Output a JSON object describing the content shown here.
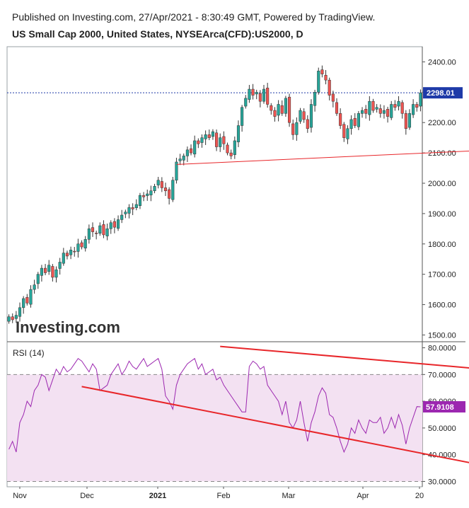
{
  "header": {
    "published": "Published on Investing.com, 27/Apr/2021 - 8:30:49 GMT, Powered by TradingView.",
    "instrument": "US Small Cap 2000, United States, NYSEArca(CFD):US2000, D"
  },
  "watermark": "Investing.com",
  "colors": {
    "up": "#26a69a",
    "down": "#ef5350",
    "rsi_line": "#9c27b0",
    "rsi_band": "#f3e1f2",
    "annotation": "#e8262a",
    "price_line": "#1e3aa8"
  },
  "chart_data": [
    {
      "type": "candlestick",
      "title": "US Small Cap 2000, United States, NYSEArca(CFD):US2000, D",
      "ylim": [
        1480,
        2450
      ],
      "y_ticks": [
        1500,
        1600,
        1700,
        1800,
        1900,
        2000,
        2100,
        2200,
        2300,
        2400
      ],
      "y_tick_labels": [
        "1500.00",
        "1600.00",
        "1700.00",
        "1800.00",
        "1900.00",
        "2000.00",
        "2100.00",
        "2200.00",
        "2300.00",
        "2400.00"
      ],
      "x_tick_labels": [
        "Nov",
        "Dec",
        "2021",
        "Feb",
        "Mar",
        "Apr",
        "20"
      ],
      "last_price": 2298.01,
      "last_price_label": "2298.01",
      "series_close": [
        1560,
        1550,
        1565,
        1590,
        1620,
        1605,
        1650,
        1665,
        1700,
        1720,
        1705,
        1730,
        1690,
        1715,
        1740,
        1770,
        1760,
        1780,
        1775,
        1800,
        1790,
        1815,
        1850,
        1840,
        1835,
        1860,
        1830,
        1850,
        1870,
        1855,
        1880,
        1895,
        1905,
        1920,
        1915,
        1930,
        1960,
        1955,
        1965,
        1975,
        1990,
        2010,
        1985,
        1975,
        1950,
        2010,
        2070,
        2080,
        2090,
        2110,
        2100,
        2140,
        2130,
        2150,
        2160,
        2150,
        2170,
        2120,
        2150,
        2130,
        2100,
        2090,
        2140,
        2190,
        2250,
        2280,
        2310,
        2290,
        2300,
        2270,
        2310,
        2260,
        2240,
        2220,
        2260,
        2230,
        2280,
        2200,
        2160,
        2200,
        2240,
        2210,
        2180,
        2260,
        2300,
        2370,
        2360,
        2340,
        2290,
        2270,
        2230,
        2190,
        2150,
        2180,
        2210,
        2190,
        2230,
        2240,
        2230,
        2270,
        2240,
        2250,
        2230,
        2240,
        2220,
        2260,
        2250,
        2270,
        2230,
        2180,
        2230,
        2260,
        2250,
        2298
      ],
      "trendline": [
        {
          "x": 46,
          "y": 2062
        },
        {
          "x": 136,
          "y": 2113
        }
      ],
      "trendline_label": ""
    },
    {
      "type": "line",
      "title": "RSI (14)",
      "ylim": [
        28,
        82
      ],
      "y_ticks": [
        30,
        40,
        50,
        60,
        70,
        80
      ],
      "y_tick_labels": [
        "30.0000",
        "40.0000",
        "50.0000",
        "60.0000",
        "70.0000",
        "80.0000"
      ],
      "band": [
        30,
        70
      ],
      "last_value": 57.9108,
      "last_value_label": "57.9108",
      "values": [
        42,
        45,
        41,
        52,
        55,
        60,
        58,
        64,
        66,
        70,
        69,
        64,
        68,
        72,
        70,
        73,
        71,
        72,
        74,
        76,
        75,
        73,
        71,
        74,
        72,
        64,
        65,
        66,
        70,
        72,
        74,
        70,
        72,
        75,
        73,
        72,
        74,
        76,
        73,
        74,
        75,
        76,
        72,
        62,
        60,
        57,
        66,
        70,
        72,
        74,
        75,
        76,
        72,
        74,
        70,
        71,
        72,
        68,
        69,
        66,
        64,
        62,
        60,
        58,
        56,
        56,
        73,
        75,
        74,
        72,
        73,
        66,
        64,
        62,
        60,
        55,
        60,
        52,
        50,
        53,
        60,
        52,
        45,
        52,
        56,
        62,
        65,
        63,
        55,
        54,
        50,
        45,
        41,
        44,
        50,
        48,
        53,
        50,
        48,
        53,
        52,
        52,
        54,
        48,
        50,
        54,
        50,
        55,
        51,
        44,
        50,
        54,
        58,
        57.91
      ],
      "trendlines": [
        {
          "x": [
            58,
            182
          ],
          "y": [
            80.5,
            66
          ]
        },
        {
          "x": [
            20,
            140
          ],
          "y": [
            65.5,
            33.5
          ]
        }
      ]
    }
  ]
}
